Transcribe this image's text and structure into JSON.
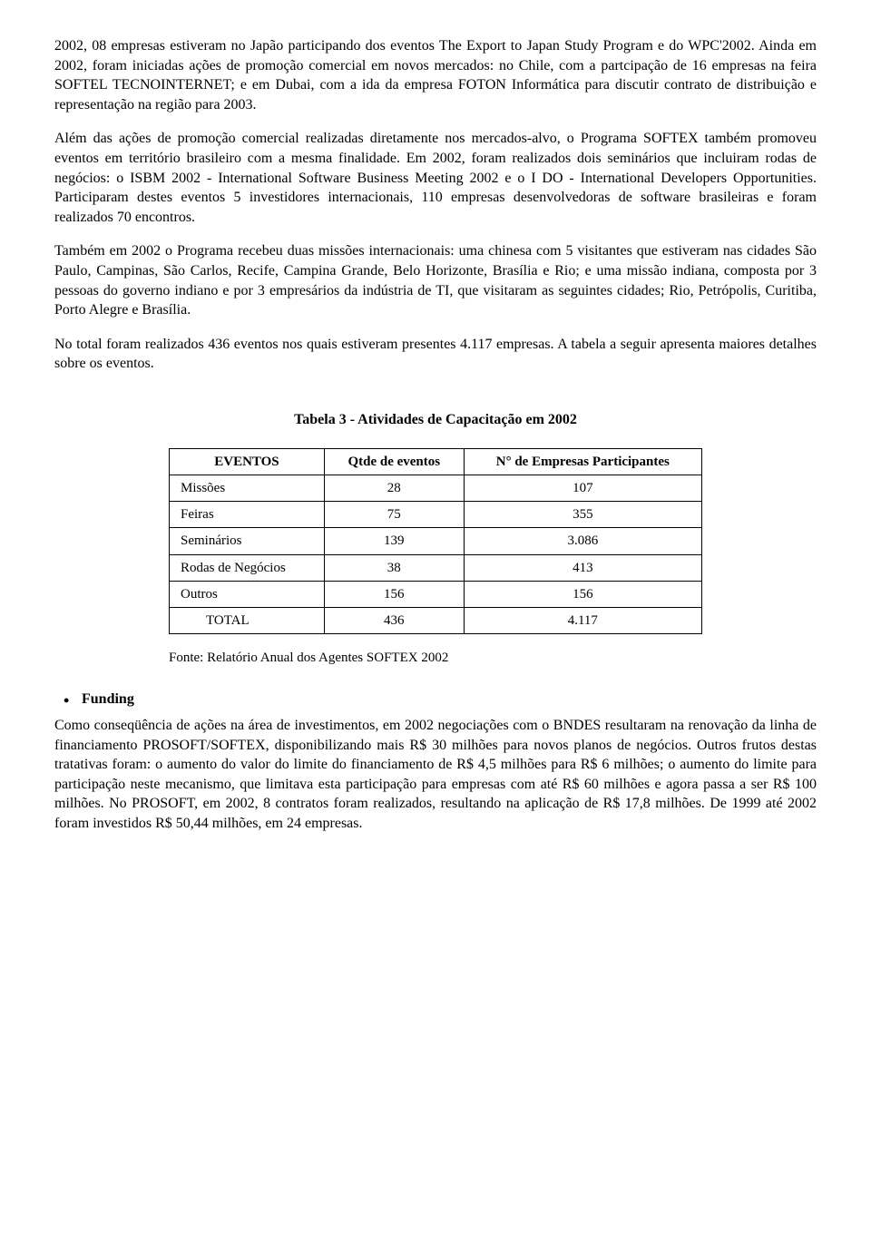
{
  "paragraphs": {
    "p1": "2002, 08 empresas estiveram no Japão participando dos eventos The Export to Japan Study Program e do WPC'2002. Ainda em 2002, foram iniciadas ações de promoção comercial em novos mercados: no Chile, com a partcipação de 16 empresas na feira SOFTEL TECNOINTERNET; e em Dubai, com a ida da empresa FOTON Informática para discutir contrato de distribuição e representação na região para 2003.",
    "p2": "Além das ações de promoção comercial realizadas diretamente nos mercados-alvo, o Programa SOFTEX também promoveu eventos em território brasileiro com a mesma finalidade. Em 2002, foram realizados dois seminários que incluiram rodas de negócios: o ISBM 2002 - International Software Business Meeting 2002 e o I DO - International Developers Opportunities. Participaram destes eventos 5 investidores internacionais, 110 empresas desenvolvedoras de software brasileiras e foram realizados 70 encontros.",
    "p3": "Também  em 2002 o Programa recebeu duas missões internacionais: uma chinesa com 5 visitantes que estiveram nas cidades São Paulo, Campinas, São Carlos, Recife, Campina Grande, Belo Horizonte, Brasília e Rio; e uma missão indiana, composta por 3 pessoas do governo indiano e  por 3 empresários da indústria de TI, que visitaram as seguintes cidades; Rio, Petrópolis, Curitiba, Porto Alegre e Brasília.",
    "p4": "No total foram realizados 436 eventos nos quais estiveram presentes 4.117 empresas. A tabela a seguir apresenta maiores detalhes sobre os eventos.",
    "p5": "Como conseqüência de ações na área de investimentos, em 2002 negociações com o BNDES resultaram na renovação da linha de financiamento PROSOFT/SOFTEX, disponibilizando mais R$ 30 milhões para novos planos de negócios. Outros frutos destas tratativas foram: o aumento do valor do limite do  financiamento de R$ 4,5 milhões para R$ 6 milhões; o aumento do limite para participação neste mecanismo, que limitava esta participação para empresas com até R$ 60 milhões e agora passa a ser R$ 100 milhões. No PROSOFT, em 2002, 8 contratos foram realizados, resultando na aplicação de R$ 17,8 milhões. De 1999 até 2002 foram investidos R$ 50,44 milhões, em 24 empresas."
  },
  "table": {
    "title": "Tabela 3  -  Atividades de  Capacitação em 2002",
    "headers": {
      "col1": "EVENTOS",
      "col2": "Qtde de eventos",
      "col3": "N° de Empresas Participantes"
    },
    "rows": [
      {
        "label": "Missões",
        "qty": "28",
        "companies": "107"
      },
      {
        "label": "Feiras",
        "qty": "75",
        "companies": "355"
      },
      {
        "label": "Seminários",
        "qty": "139",
        "companies": "3.086"
      },
      {
        "label": "Rodas de Negócios",
        "qty": "38",
        "companies": "413"
      },
      {
        "label": "Outros",
        "qty": "156",
        "companies": "156"
      }
    ],
    "total": {
      "label": "TOTAL",
      "qty": "436",
      "companies": "4.117"
    },
    "source": "Fonte: Relatório Anual dos Agentes SOFTEX 2002"
  },
  "heading": {
    "funding": "Funding"
  }
}
